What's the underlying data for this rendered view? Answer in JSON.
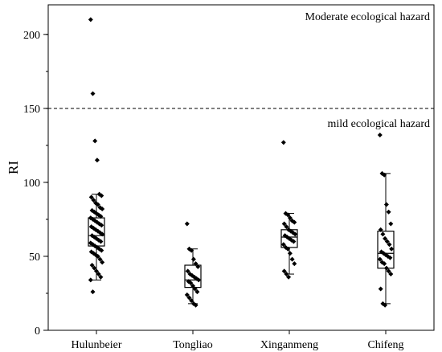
{
  "chart_data": {
    "type": "box",
    "categories": [
      "Hulunbeier",
      "Tongliao",
      "Xinganmeng",
      "Chifeng"
    ],
    "ylabel": "RI",
    "xlabel": "",
    "ylim": [
      0,
      220
    ],
    "yticks": [
      0,
      50,
      100,
      150,
      200
    ],
    "y_minor_step": 25,
    "threshold": {
      "value": 150,
      "style": "dashed"
    },
    "annotations": {
      "upper": "Moderate ecological hazard",
      "lower": "mild ecological hazard"
    },
    "boxes": [
      {
        "category": "Hulunbeier",
        "whisker_low": 34,
        "q1": 57,
        "median": 64,
        "q3": 76,
        "whisker_high": 92
      },
      {
        "category": "Tongliao",
        "whisker_low": 18,
        "q1": 29,
        "median": 34,
        "q3": 44,
        "whisker_high": 55
      },
      {
        "category": "Xinganmeng",
        "whisker_low": 38,
        "q1": 56,
        "median": 63,
        "q3": 68,
        "whisker_high": 79
      },
      {
        "category": "Chifeng",
        "whisker_low": 18,
        "q1": 42,
        "median": 52,
        "q3": 67,
        "whisker_high": 106
      }
    ],
    "points": [
      [
        210,
        160,
        128,
        115,
        92,
        91,
        90,
        88,
        86,
        85,
        83,
        82,
        81,
        80,
        79,
        78,
        77,
        76,
        75,
        74,
        73,
        72,
        71,
        70,
        69,
        68,
        67,
        66,
        65,
        64,
        63,
        62,
        61,
        60,
        59,
        58,
        57,
        56,
        55,
        54,
        53,
        52,
        51,
        50,
        48,
        46,
        44,
        42,
        40,
        38,
        36,
        34,
        26
      ],
      [
        72,
        55,
        54,
        48,
        45,
        43,
        40,
        38,
        37,
        36,
        35,
        34,
        33,
        32,
        30,
        28,
        26,
        24,
        22,
        20,
        18,
        17
      ],
      [
        127,
        79,
        78,
        76,
        74,
        73,
        72,
        70,
        68,
        67,
        66,
        65,
        64,
        63,
        62,
        61,
        60,
        58,
        56,
        55,
        52,
        48,
        45,
        40,
        38,
        36
      ],
      [
        132,
        106,
        105,
        85,
        80,
        72,
        68,
        65,
        62,
        60,
        58,
        55,
        53,
        52,
        51,
        50,
        49,
        48,
        46,
        45,
        42,
        40,
        38,
        28,
        18,
        17
      ]
    ]
  }
}
